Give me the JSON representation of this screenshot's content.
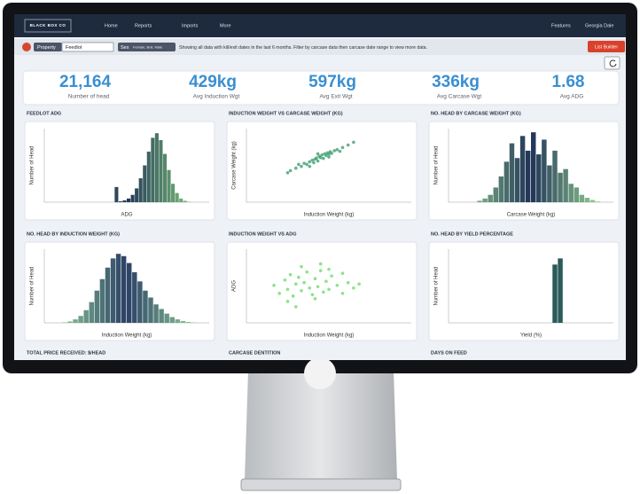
{
  "header": {
    "logo": "BLACK BOX CO",
    "nav": [
      "Home",
      "Reports",
      "Imports",
      "More"
    ],
    "right": [
      "Features",
      "Georgia Dale"
    ]
  },
  "filters": {
    "property_label": "Property",
    "property_value": "Feedlot",
    "sex_label": "Sex",
    "sex_value": "Female, Bull, Male",
    "message": "Showing all data with kill/exit dates in the last 6 months. Filter by carcase data then carcase date range to view more data.",
    "button": "List Builder"
  },
  "kpis": [
    {
      "value": "21,164",
      "label": "Number of head"
    },
    {
      "value": "429kg",
      "label": "Avg Induction Wgt"
    },
    {
      "value": "597kg",
      "label": "Avg Exit Wgt"
    },
    {
      "value": "336kg",
      "label": "Avg Carcase Wgt"
    },
    {
      "value": "1.68",
      "label": "Avg ADG"
    }
  ],
  "charts": [
    {
      "type": "histogram",
      "title": "FEEDLOT ADG",
      "x_label": "ADG",
      "y_label": "Number of Head",
      "ylim": [
        0,
        1600
      ],
      "color_from": "#1f3357",
      "color_to": "#8fe07f",
      "values": [
        0,
        0,
        0,
        0,
        0,
        0,
        0,
        0,
        0,
        0,
        0,
        0,
        0,
        0,
        0,
        0,
        0,
        330,
        20,
        40,
        80,
        160,
        300,
        520,
        800,
        1100,
        1400,
        1500,
        1350,
        1050,
        700,
        400,
        200,
        80,
        30,
        10,
        0,
        0,
        0,
        0
      ]
    },
    {
      "type": "scatter",
      "title": "INDUCTION WEIGHT VS CARCASE WEIGHT (KG)",
      "x_label": "Induction Weight (kg)",
      "y_label": "Carcase Weight (kg)",
      "xlim": [
        150,
        750
      ],
      "ylim": [
        100,
        450
      ],
      "color": "#3f9f72",
      "x": [
        310,
        330,
        350,
        360,
        370,
        380,
        390,
        395,
        400,
        405,
        410,
        415,
        420,
        425,
        430,
        435,
        440,
        445,
        450,
        455,
        460,
        470,
        480,
        490,
        500,
        520,
        340,
        380,
        410,
        450,
        300,
        540
      ],
      "values": [
        250,
        262,
        270,
        285,
        280,
        292,
        300,
        288,
        305,
        310,
        296,
        318,
        312,
        325,
        308,
        330,
        322,
        335,
        328,
        340,
        332,
        345,
        350,
        342,
        360,
        372,
        280,
        270,
        330,
        315,
        240,
        385
      ]
    },
    {
      "type": "histogram",
      "title": "NO. HEAD BY CARCASE WEIGHT (KG)",
      "x_label": "Carcase Weight (kg)",
      "y_label": "Number of Head",
      "ylim": [
        0,
        100
      ],
      "color_from": "#1f3357",
      "color_to": "#a6e89a",
      "values": [
        0,
        0,
        0,
        0,
        0,
        2,
        5,
        10,
        20,
        35,
        55,
        80,
        60,
        90,
        70,
        95,
        65,
        85,
        50,
        70,
        40,
        45,
        25,
        20,
        10,
        6,
        3,
        1,
        0,
        0
      ]
    },
    {
      "type": "histogram",
      "title": "NO. HEAD BY INDUCTION WEIGHT (KG)",
      "x_label": "Induction Weight (kg)",
      "y_label": "Number of Head",
      "ylim": [
        0,
        320
      ],
      "color_from": "#2a3f66",
      "color_to": "#9fe3a0",
      "values": [
        0,
        0,
        0,
        2,
        6,
        15,
        30,
        55,
        90,
        140,
        190,
        240,
        280,
        300,
        290,
        260,
        220,
        180,
        140,
        110,
        80,
        60,
        40,
        25,
        15,
        8,
        4,
        2,
        0,
        0
      ]
    },
    {
      "type": "scatter",
      "title": "INDUCTION WEIGHT VS ADG",
      "x_label": "Induction Weight (kg)",
      "y_label": "ADG",
      "xlim": [
        150,
        750
      ],
      "ylim": [
        -1,
        4.5
      ],
      "color": "#6fdc6a",
      "x": [
        250,
        270,
        290,
        300,
        310,
        320,
        330,
        340,
        350,
        360,
        370,
        380,
        390,
        400,
        410,
        420,
        430,
        440,
        450,
        460,
        480,
        500,
        520,
        540,
        560,
        300,
        350,
        400,
        450,
        500,
        330,
        420
      ],
      "values": [
        1.8,
        1.2,
        2.2,
        1.5,
        2.6,
        1.0,
        1.9,
        2.4,
        1.4,
        2.0,
        2.8,
        1.6,
        1.1,
        2.3,
        1.7,
        2.9,
        1.3,
        2.1,
        1.5,
        2.5,
        1.8,
        1.2,
        2.0,
        1.6,
        1.9,
        0.6,
        3.2,
        0.8,
        3.0,
        2.7,
        0.2,
        3.4
      ]
    },
    {
      "type": "histogram",
      "title": "NO. HEAD BY YIELD PERCENTAGE",
      "x_label": "Yield (%)",
      "y_label": "Number of Head",
      "ylim": [
        0,
        120
      ],
      "color_from": "#2a5a5a",
      "color_to": "#2a5a5a",
      "values": [
        0,
        0,
        0,
        0,
        0,
        0,
        0,
        0,
        0,
        0,
        0,
        0,
        0,
        0,
        0,
        0,
        0,
        0,
        0,
        95,
        105,
        0,
        0,
        0,
        0,
        0,
        0,
        0,
        0,
        0
      ]
    }
  ],
  "more_titles": [
    "TOTAL PRICE RECEIVED: $/HEAD",
    "CARCASE DENTITION",
    "DAYS ON FEED"
  ]
}
